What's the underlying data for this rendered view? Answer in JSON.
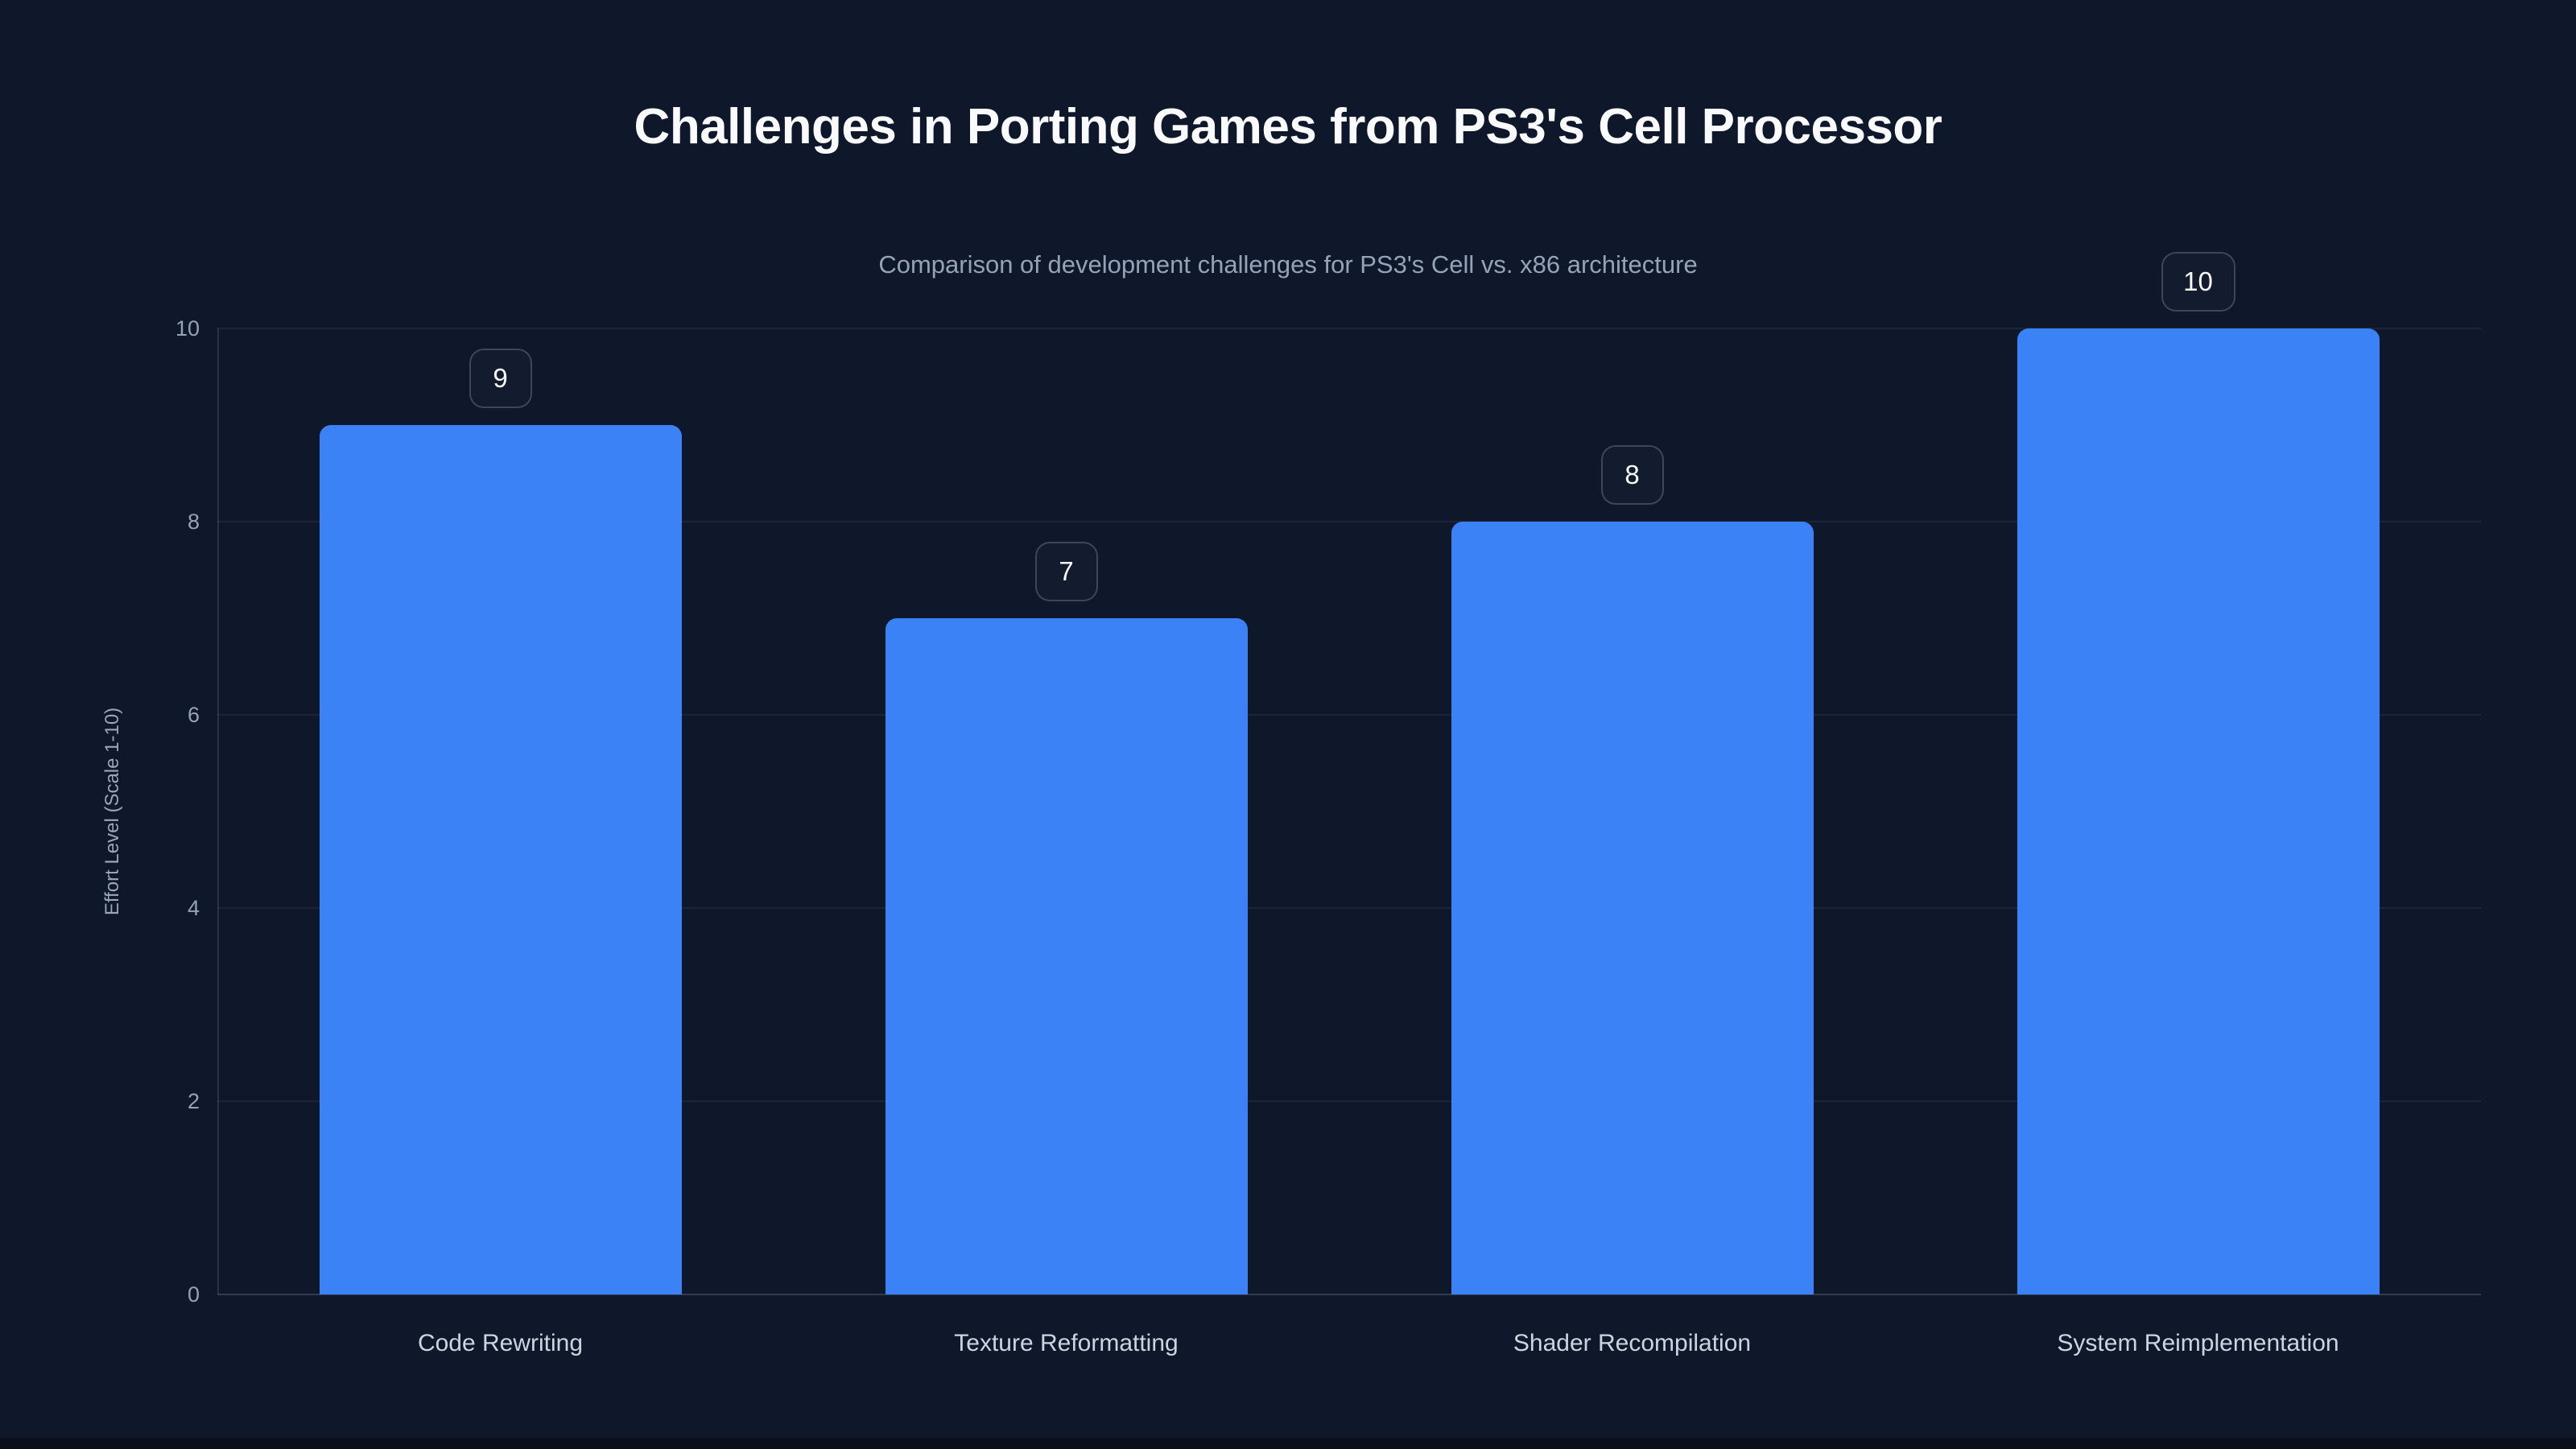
{
  "page": {
    "background_color": "#0f172a",
    "footer_strip_color": "#0b0f1b"
  },
  "chart_data": {
    "type": "bar",
    "title": "Challenges in Porting Games from PS3's Cell Processor",
    "subtitle": "Comparison of development challenges for PS3's Cell vs. x86 architecture",
    "categories": [
      "Code Rewriting",
      "Texture Reformatting",
      "Shader Recompilation",
      "System Reimplementation"
    ],
    "values": [
      9,
      7,
      8,
      10
    ],
    "value_labels": [
      "9",
      "7",
      "8",
      "10"
    ],
    "xlabel": "",
    "ylabel": "Effort Level (Scale 1-10)",
    "ylim": [
      0,
      10
    ],
    "yticks": [
      0,
      2,
      4,
      6,
      8,
      10
    ],
    "grid": "horizontal",
    "legend": "none",
    "bar_color": "#3b82f6",
    "colors": {
      "title": "#f8fafc",
      "subtitle": "#94a3b8",
      "tick_label": "#94a3b8",
      "category_label": "#cbd5e1",
      "gridline": "rgba(148,163,184,0.10)",
      "axis_line": "rgba(148,163,184,0.28)",
      "badge_border": "rgba(148,163,184,0.32)",
      "badge_text": "#f8fafc"
    }
  }
}
